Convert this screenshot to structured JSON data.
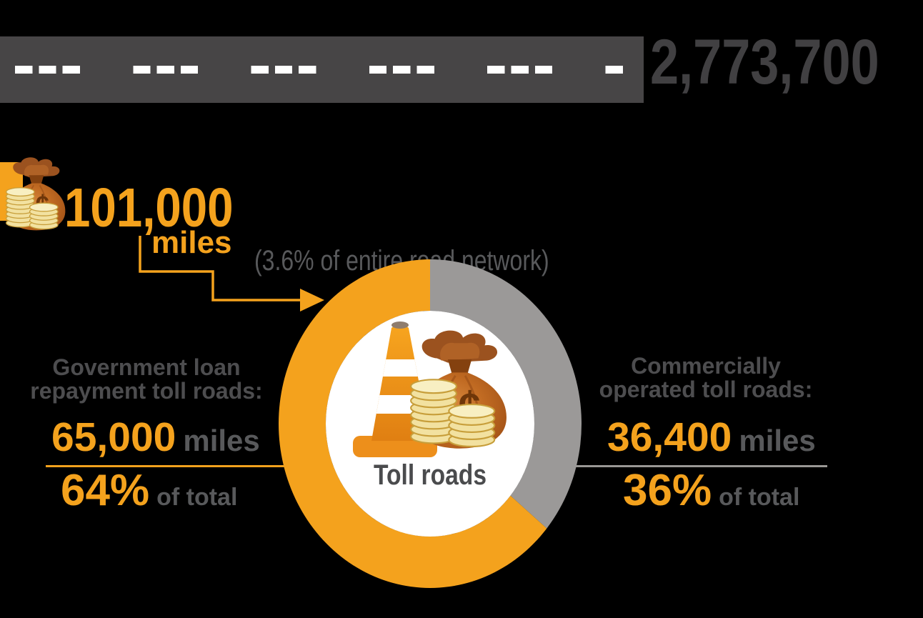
{
  "chart_data": {
    "type": "pie",
    "title": "Toll roads",
    "unit": "miles",
    "total_road_network_miles": 2773700,
    "toll_road_miles": 101000,
    "toll_share_of_network": "3.6%",
    "center_label": "Toll roads",
    "legend_position": "sides",
    "segments": [
      {
        "id": "government",
        "name": "Government loan repayment toll roads",
        "miles": 65000,
        "percent": 64,
        "color": "#F4A21D"
      },
      {
        "id": "commercial",
        "name": "Commercially operated toll roads",
        "miles": 36400,
        "percent": 36,
        "color": "#9B9998"
      }
    ]
  },
  "road": {
    "total_miles": "2,773,700"
  },
  "toll": {
    "value": "101,000",
    "unit": "miles",
    "note": "(3.6% of entire road network)"
  },
  "donut": {
    "label": "Toll roads"
  },
  "left": {
    "heading_line1": "Government loan",
    "heading_line2": "repayment toll roads:",
    "value": "65,000",
    "unit": "miles",
    "percent": "64%",
    "percent_suffix": "of total"
  },
  "right": {
    "heading_line1": "Commercially",
    "heading_line2": "operated toll roads:",
    "value": "36,400",
    "unit": "miles",
    "percent": "36%",
    "percent_suffix": "of total"
  },
  "icons": {
    "cent_symbol": "¢"
  },
  "colors": {
    "accent_orange": "#F4A21D",
    "donut_gray": "#9B9998",
    "road_gray": "#474546",
    "number_gray": "#414042",
    "text_dark": "#4D4D4F",
    "text_mid": "#58595B"
  }
}
